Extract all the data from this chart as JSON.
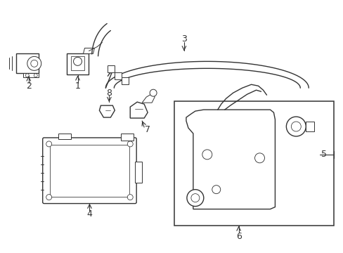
{
  "background_color": "#ffffff",
  "line_color": "#333333",
  "figsize": [
    4.89,
    3.6
  ],
  "dpi": 100,
  "xlim": [
    0,
    489
  ],
  "ylim": [
    0,
    360
  ]
}
